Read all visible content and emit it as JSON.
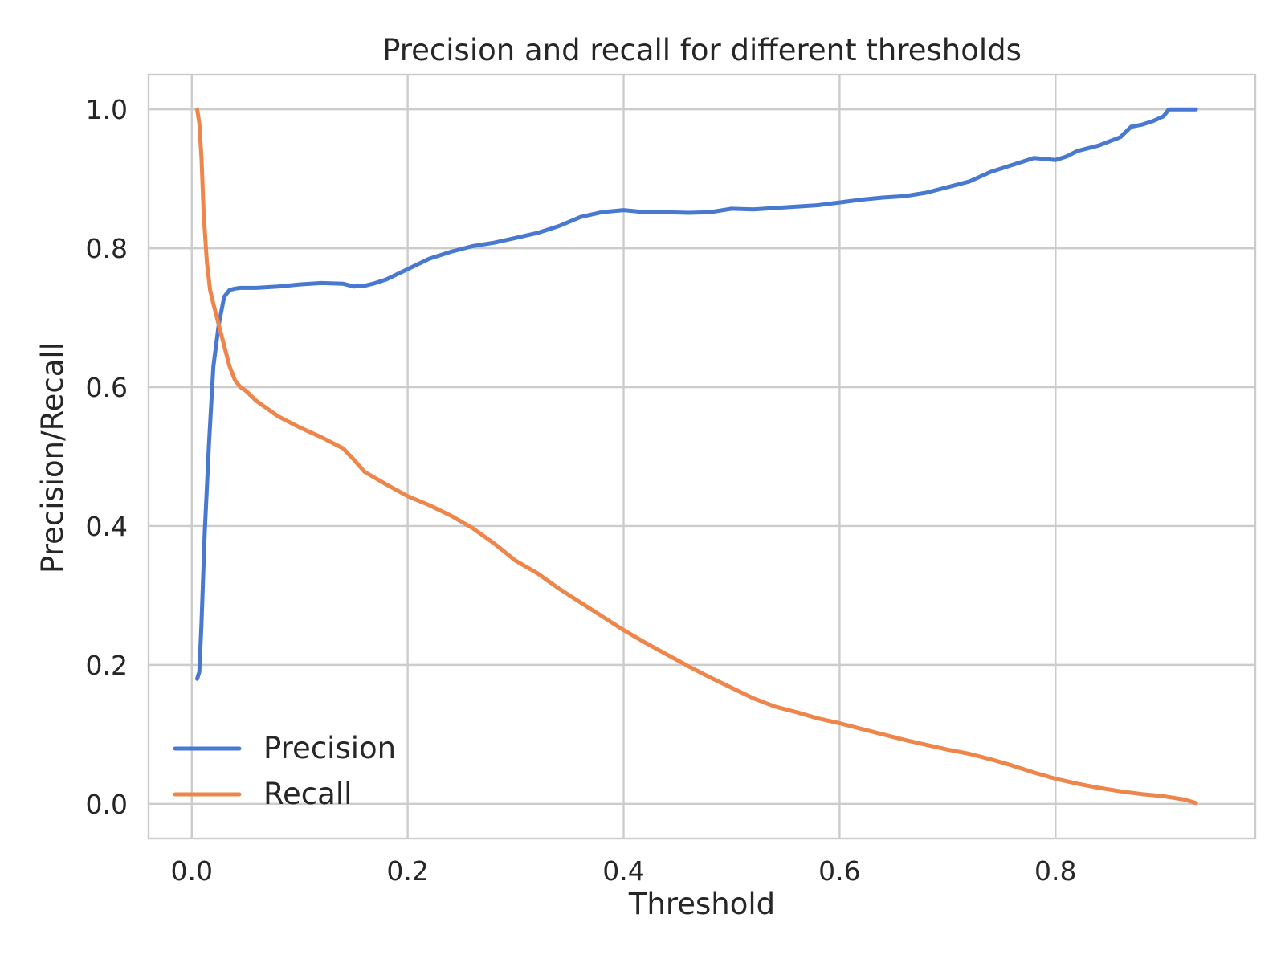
{
  "chart_data": {
    "type": "line",
    "title": "Precision and recall for different thresholds",
    "xlabel": "Threshold",
    "ylabel": "Precision/Recall",
    "xlim": [
      -0.04,
      0.985
    ],
    "ylim": [
      -0.05,
      1.05
    ],
    "xticks": [
      0.0,
      0.2,
      0.4,
      0.6,
      0.8
    ],
    "xtick_labels": [
      "0.0",
      "0.2",
      "0.4",
      "0.6",
      "0.8"
    ],
    "yticks": [
      0.0,
      0.2,
      0.4,
      0.6,
      0.8,
      1.0
    ],
    "ytick_labels": [
      "0.0",
      "0.2",
      "0.4",
      "0.6",
      "0.8",
      "1.0"
    ],
    "grid": true,
    "legend_position": "lower-left",
    "series": [
      {
        "name": "Precision",
        "color": "#4878d0",
        "x": [
          0.005,
          0.007,
          0.009,
          0.012,
          0.016,
          0.02,
          0.025,
          0.03,
          0.035,
          0.04,
          0.045,
          0.05,
          0.06,
          0.08,
          0.1,
          0.12,
          0.14,
          0.15,
          0.16,
          0.17,
          0.18,
          0.2,
          0.22,
          0.24,
          0.26,
          0.28,
          0.3,
          0.32,
          0.34,
          0.36,
          0.38,
          0.4,
          0.42,
          0.44,
          0.46,
          0.48,
          0.5,
          0.52,
          0.54,
          0.56,
          0.58,
          0.6,
          0.62,
          0.64,
          0.66,
          0.68,
          0.7,
          0.72,
          0.74,
          0.76,
          0.78,
          0.8,
          0.81,
          0.82,
          0.84,
          0.86,
          0.87,
          0.88,
          0.89,
          0.9,
          0.905,
          0.93
        ],
        "values": [
          0.18,
          0.19,
          0.26,
          0.39,
          0.52,
          0.63,
          0.69,
          0.73,
          0.74,
          0.742,
          0.743,
          0.743,
          0.743,
          0.745,
          0.748,
          0.75,
          0.749,
          0.745,
          0.746,
          0.75,
          0.755,
          0.77,
          0.785,
          0.795,
          0.803,
          0.808,
          0.815,
          0.822,
          0.832,
          0.845,
          0.852,
          0.855,
          0.852,
          0.852,
          0.851,
          0.852,
          0.857,
          0.856,
          0.858,
          0.86,
          0.862,
          0.866,
          0.87,
          0.873,
          0.875,
          0.88,
          0.888,
          0.896,
          0.91,
          0.92,
          0.93,
          0.927,
          0.932,
          0.94,
          0.948,
          0.96,
          0.975,
          0.978,
          0.983,
          0.99,
          1.0,
          1.0
        ]
      },
      {
        "name": "Recall",
        "color": "#ee854a",
        "x": [
          0.005,
          0.007,
          0.009,
          0.011,
          0.014,
          0.017,
          0.02,
          0.025,
          0.03,
          0.035,
          0.04,
          0.045,
          0.05,
          0.06,
          0.08,
          0.1,
          0.12,
          0.14,
          0.15,
          0.16,
          0.18,
          0.2,
          0.22,
          0.24,
          0.26,
          0.28,
          0.3,
          0.32,
          0.34,
          0.36,
          0.38,
          0.4,
          0.42,
          0.44,
          0.46,
          0.48,
          0.5,
          0.52,
          0.54,
          0.56,
          0.58,
          0.6,
          0.62,
          0.64,
          0.66,
          0.68,
          0.7,
          0.72,
          0.74,
          0.76,
          0.78,
          0.8,
          0.82,
          0.84,
          0.86,
          0.88,
          0.9,
          0.92,
          0.93
        ],
        "values": [
          1.0,
          0.98,
          0.93,
          0.85,
          0.78,
          0.74,
          0.72,
          0.69,
          0.66,
          0.63,
          0.61,
          0.6,
          0.595,
          0.58,
          0.558,
          0.542,
          0.528,
          0.512,
          0.496,
          0.478,
          0.46,
          0.443,
          0.43,
          0.415,
          0.397,
          0.375,
          0.35,
          0.332,
          0.31,
          0.29,
          0.27,
          0.25,
          0.232,
          0.215,
          0.198,
          0.182,
          0.167,
          0.152,
          0.14,
          0.132,
          0.123,
          0.116,
          0.108,
          0.1,
          0.092,
          0.085,
          0.078,
          0.072,
          0.064,
          0.055,
          0.045,
          0.036,
          0.029,
          0.023,
          0.018,
          0.014,
          0.011,
          0.006,
          0.001
        ]
      }
    ]
  }
}
